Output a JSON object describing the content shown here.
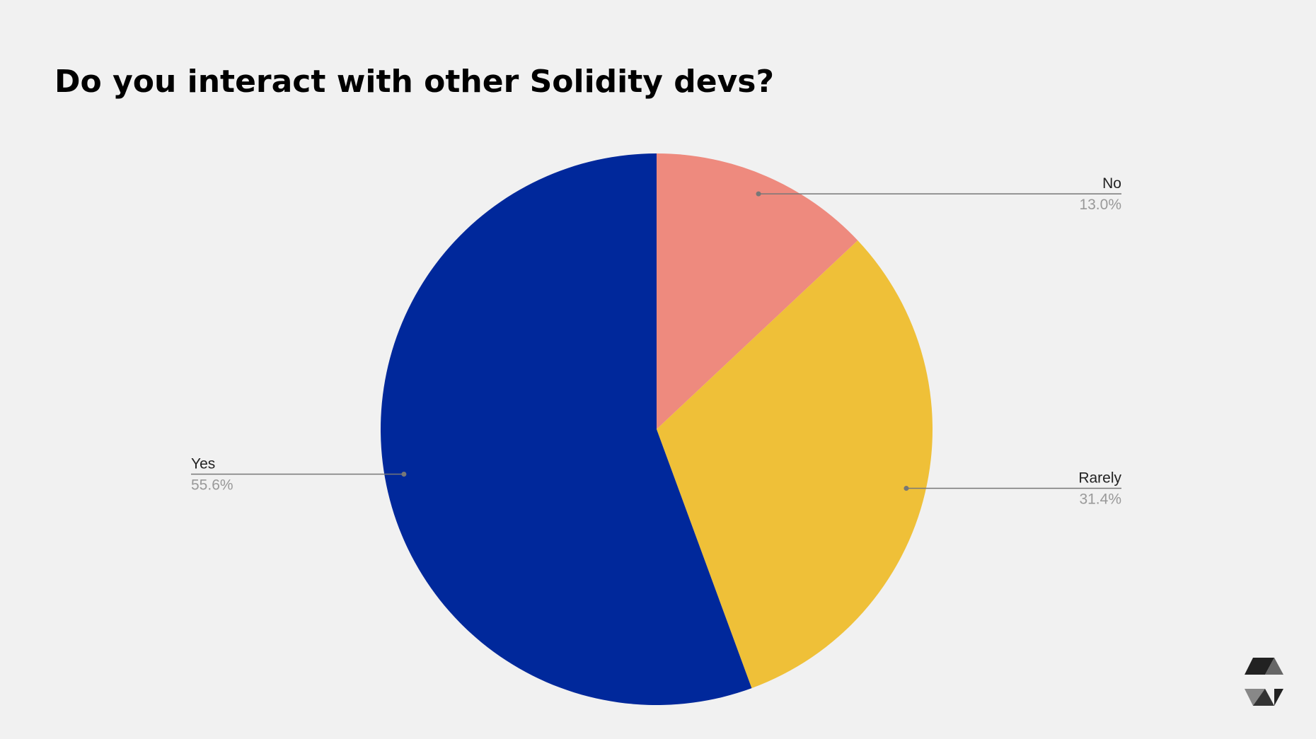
{
  "chart_data": {
    "type": "pie",
    "title": "Do you interact with other Solidity devs?",
    "categories": [
      "No",
      "Rarely",
      "Yes"
    ],
    "values": [
      13.0,
      31.4,
      55.6
    ],
    "value_labels": [
      "13.0%",
      "31.4%",
      "55.6%"
    ],
    "colors": [
      "#ee8a7e",
      "#efc038",
      "#00289b"
    ]
  }
}
